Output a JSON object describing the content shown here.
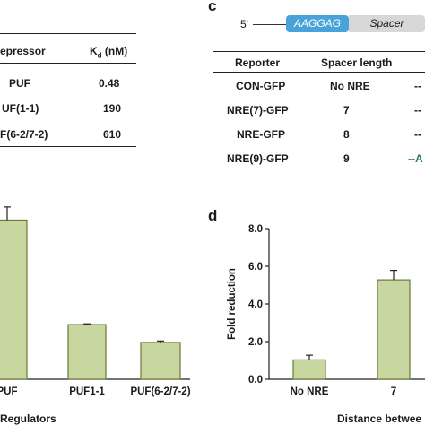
{
  "panel_labels": {
    "c": "c",
    "d": "d"
  },
  "table_left": {
    "headers": {
      "repressor": "epressor",
      "kd_prefix": "K",
      "kd_sub": "d",
      "kd_suffix": " (nM)"
    },
    "rows": [
      {
        "repressor": "PUF",
        "kd": "0.48"
      },
      {
        "repressor": "UF(1-1)",
        "kd": "190"
      },
      {
        "repressor": "F(6-2/7-2)",
        "kd": "610"
      }
    ]
  },
  "schematic": {
    "five_prime": "5'",
    "motif": "AAGGAG",
    "spacer": "Spacer",
    "motif_color": "#4aa3d8",
    "spacer_color": "#d7d7d7"
  },
  "table_right": {
    "headers": {
      "reporter": "Reporter",
      "spacer_length": "Spacer length"
    },
    "rows": [
      {
        "reporter": "CON-GFP",
        "spacer": "No NRE",
        "tail": "--"
      },
      {
        "reporter": "NRE(7)-GFP",
        "spacer": "7",
        "tail": "--"
      },
      {
        "reporter": "NRE-GFP",
        "spacer": "8",
        "tail": "--"
      },
      {
        "reporter": "NRE(9)-GFP",
        "spacer": "9",
        "tail": "--A"
      }
    ]
  },
  "chart_data": [
    {
      "type": "bar",
      "categories": [
        "PUF",
        "PUF1-1",
        "PUF(6-2/7-2)"
      ],
      "values": [
        6.7,
        2.3,
        1.55
      ],
      "errors": [
        0.55,
        0.03,
        0.06
      ],
      "xlabel": "Regulators",
      "ylabel": "",
      "bar_color": "#c8d6a0",
      "bar_edge": "#6a7a3a"
    },
    {
      "type": "bar",
      "categories": [
        "No NRE",
        "7"
      ],
      "values": [
        1.03,
        5.28
      ],
      "errors": [
        0.25,
        0.5
      ],
      "xlabel": "Distance betwee",
      "ylabel": "Fold reduction",
      "ylim": [
        0,
        8
      ],
      "yticks": [
        "0.0",
        "2.0",
        "4.0",
        "6.0",
        "8.0"
      ],
      "bar_color": "#c8d6a0",
      "bar_edge": "#6a7a3a"
    }
  ]
}
